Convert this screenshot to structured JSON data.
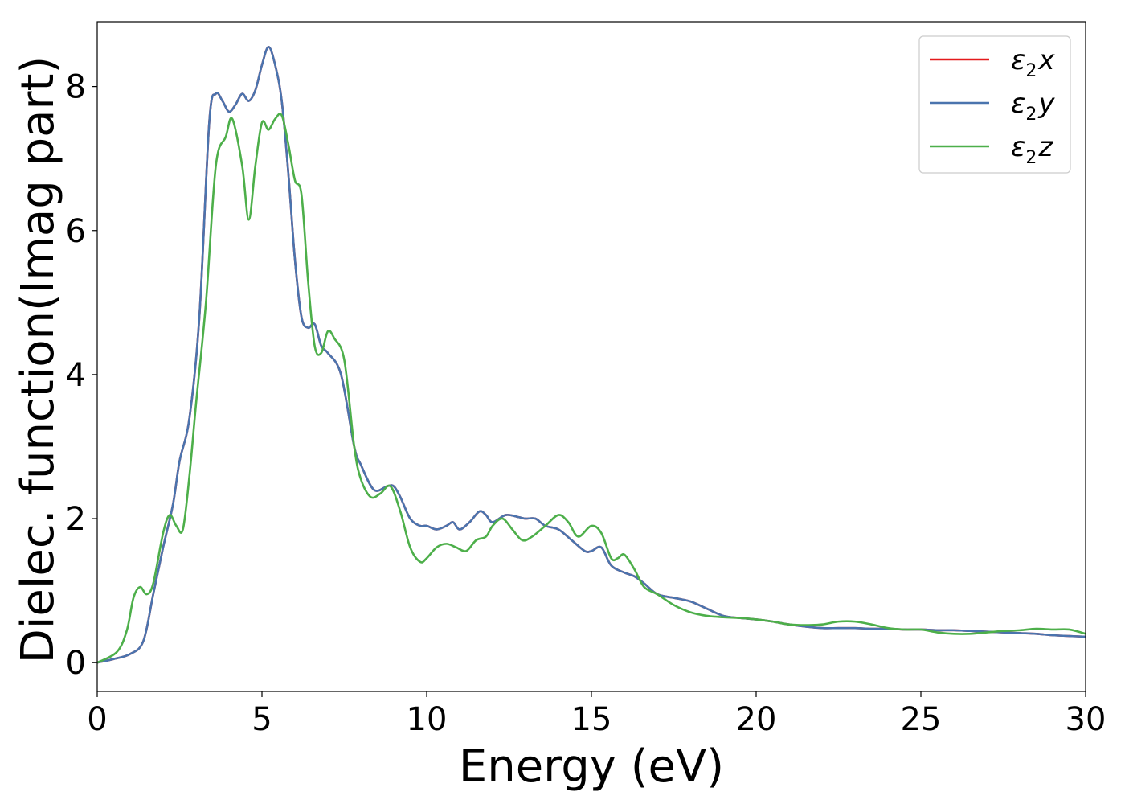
{
  "chart_data": {
    "type": "line",
    "xlabel": "Energy (eV)",
    "ylabel": "Dielec. function(Imag part)",
    "xlim": [
      0,
      30
    ],
    "ylim": [
      -0.4,
      8.9
    ],
    "xticks": [
      0,
      5,
      10,
      15,
      20,
      25,
      30
    ],
    "xtick_labels": [
      "0",
      "5",
      "10",
      "15",
      "20",
      "25",
      "30"
    ],
    "yticks": [
      0,
      2,
      4,
      6,
      8
    ],
    "ytick_labels": [
      "0",
      "2",
      "4",
      "6",
      "8"
    ],
    "grid": false,
    "legend_position": "top-right",
    "series": [
      {
        "name": "ε2x",
        "legend_main": "ε",
        "legend_sub": "2",
        "legend_axis": "x",
        "color": "#e41a1c",
        "x": [
          0,
          0.5,
          1.0,
          1.4,
          1.7,
          2.0,
          2.3,
          2.5,
          2.8,
          3.1,
          3.4,
          3.6,
          3.8,
          4.0,
          4.2,
          4.4,
          4.6,
          4.8,
          5.0,
          5.2,
          5.4,
          5.6,
          5.8,
          6.0,
          6.2,
          6.4,
          6.6,
          6.8,
          7.0,
          7.4,
          7.8,
          8.0,
          8.4,
          8.8,
          9.0,
          9.2,
          9.5,
          9.8,
          10.0,
          10.3,
          10.6,
          10.8,
          11.0,
          11.3,
          11.6,
          11.8,
          12.0,
          12.4,
          12.8,
          13.0,
          13.3,
          13.6,
          14.0,
          14.4,
          14.8,
          15.0,
          15.3,
          15.6,
          16.0,
          16.3,
          16.6,
          17.0,
          17.5,
          18.0,
          18.5,
          19.0,
          19.5,
          20.0,
          20.5,
          21.0,
          21.5,
          22.0,
          22.5,
          23.0,
          23.5,
          24.0,
          24.5,
          25.0,
          25.5,
          26.0,
          26.5,
          27.0,
          27.5,
          28.0,
          28.5,
          29.0,
          29.5,
          30.0
        ],
        "y": [
          0.0,
          0.05,
          0.12,
          0.3,
          0.95,
          1.6,
          2.2,
          2.8,
          3.4,
          4.8,
          7.5,
          7.9,
          7.8,
          7.65,
          7.75,
          7.9,
          7.8,
          7.95,
          8.3,
          8.55,
          8.3,
          7.8,
          6.8,
          5.6,
          4.8,
          4.65,
          4.7,
          4.4,
          4.3,
          4.0,
          3.0,
          2.75,
          2.4,
          2.45,
          2.45,
          2.3,
          2.0,
          1.9,
          1.9,
          1.85,
          1.9,
          1.95,
          1.85,
          1.95,
          2.1,
          2.05,
          1.95,
          2.05,
          2.02,
          2.0,
          2.0,
          1.9,
          1.85,
          1.7,
          1.55,
          1.55,
          1.6,
          1.35,
          1.25,
          1.2,
          1.1,
          0.95,
          0.9,
          0.85,
          0.75,
          0.65,
          0.62,
          0.6,
          0.57,
          0.53,
          0.5,
          0.48,
          0.48,
          0.48,
          0.47,
          0.47,
          0.46,
          0.46,
          0.45,
          0.45,
          0.44,
          0.43,
          0.42,
          0.41,
          0.4,
          0.38,
          0.37,
          0.36
        ]
      },
      {
        "name": "ε2y",
        "legend_main": "ε",
        "legend_sub": "2",
        "legend_axis": "y",
        "color": "#4a74ae",
        "x": [
          0,
          0.5,
          1.0,
          1.4,
          1.7,
          2.0,
          2.3,
          2.5,
          2.8,
          3.1,
          3.4,
          3.6,
          3.8,
          4.0,
          4.2,
          4.4,
          4.6,
          4.8,
          5.0,
          5.2,
          5.4,
          5.6,
          5.8,
          6.0,
          6.2,
          6.4,
          6.6,
          6.8,
          7.0,
          7.4,
          7.8,
          8.0,
          8.4,
          8.8,
          9.0,
          9.2,
          9.5,
          9.8,
          10.0,
          10.3,
          10.6,
          10.8,
          11.0,
          11.3,
          11.6,
          11.8,
          12.0,
          12.4,
          12.8,
          13.0,
          13.3,
          13.6,
          14.0,
          14.4,
          14.8,
          15.0,
          15.3,
          15.6,
          16.0,
          16.3,
          16.6,
          17.0,
          17.5,
          18.0,
          18.5,
          19.0,
          19.5,
          20.0,
          20.5,
          21.0,
          21.5,
          22.0,
          22.5,
          23.0,
          23.5,
          24.0,
          24.5,
          25.0,
          25.5,
          26.0,
          26.5,
          27.0,
          27.5,
          28.0,
          28.5,
          29.0,
          29.5,
          30.0
        ],
        "y": [
          0.0,
          0.05,
          0.12,
          0.3,
          0.95,
          1.6,
          2.2,
          2.8,
          3.4,
          4.8,
          7.5,
          7.9,
          7.8,
          7.65,
          7.75,
          7.9,
          7.8,
          7.95,
          8.3,
          8.55,
          8.3,
          7.8,
          6.8,
          5.6,
          4.8,
          4.65,
          4.7,
          4.4,
          4.3,
          4.0,
          3.0,
          2.75,
          2.4,
          2.45,
          2.45,
          2.3,
          2.0,
          1.9,
          1.9,
          1.85,
          1.9,
          1.95,
          1.85,
          1.95,
          2.1,
          2.05,
          1.95,
          2.05,
          2.02,
          2.0,
          2.0,
          1.9,
          1.85,
          1.7,
          1.55,
          1.55,
          1.6,
          1.35,
          1.25,
          1.2,
          1.1,
          0.95,
          0.9,
          0.85,
          0.75,
          0.65,
          0.62,
          0.6,
          0.57,
          0.53,
          0.5,
          0.48,
          0.48,
          0.48,
          0.47,
          0.47,
          0.46,
          0.46,
          0.45,
          0.45,
          0.44,
          0.43,
          0.42,
          0.41,
          0.4,
          0.38,
          0.37,
          0.36
        ]
      },
      {
        "name": "ε2z",
        "legend_main": "ε",
        "legend_sub": "2",
        "legend_axis": "z",
        "color": "#4daf4a",
        "x": [
          0,
          0.6,
          0.9,
          1.1,
          1.3,
          1.5,
          1.7,
          2.0,
          2.2,
          2.4,
          2.6,
          2.8,
          3.0,
          3.3,
          3.6,
          3.9,
          4.1,
          4.4,
          4.6,
          4.8,
          5.0,
          5.2,
          5.4,
          5.6,
          5.8,
          6.0,
          6.2,
          6.4,
          6.6,
          6.8,
          7.0,
          7.2,
          7.5,
          7.8,
          8.0,
          8.3,
          8.6,
          8.9,
          9.2,
          9.5,
          9.8,
          10.0,
          10.3,
          10.6,
          10.9,
          11.2,
          11.5,
          11.8,
          12.0,
          12.3,
          12.6,
          12.9,
          13.2,
          13.6,
          14.0,
          14.3,
          14.6,
          15.0,
          15.3,
          15.6,
          15.8,
          16.0,
          16.3,
          16.6,
          17.0,
          17.5,
          18.0,
          18.5,
          19.0,
          19.5,
          20.0,
          20.5,
          21.0,
          21.5,
          22.0,
          22.5,
          23.0,
          23.5,
          24.0,
          24.5,
          25.0,
          25.5,
          26.0,
          26.5,
          27.0,
          27.5,
          28.0,
          28.5,
          29.0,
          29.5,
          30.0
        ],
        "y": [
          0.0,
          0.15,
          0.45,
          0.9,
          1.05,
          0.95,
          1.1,
          1.8,
          2.05,
          1.9,
          1.85,
          2.6,
          3.6,
          5.0,
          6.9,
          7.3,
          7.55,
          6.9,
          6.15,
          6.9,
          7.5,
          7.4,
          7.55,
          7.6,
          7.2,
          6.7,
          6.5,
          5.3,
          4.4,
          4.3,
          4.6,
          4.5,
          4.2,
          3.0,
          2.55,
          2.3,
          2.35,
          2.45,
          2.1,
          1.6,
          1.4,
          1.45,
          1.6,
          1.65,
          1.6,
          1.55,
          1.7,
          1.75,
          1.9,
          2.0,
          1.85,
          1.7,
          1.75,
          1.9,
          2.05,
          1.95,
          1.75,
          1.9,
          1.8,
          1.45,
          1.45,
          1.5,
          1.3,
          1.05,
          0.95,
          0.8,
          0.7,
          0.65,
          0.63,
          0.62,
          0.6,
          0.57,
          0.53,
          0.52,
          0.53,
          0.57,
          0.57,
          0.53,
          0.48,
          0.46,
          0.46,
          0.42,
          0.4,
          0.4,
          0.42,
          0.44,
          0.45,
          0.47,
          0.46,
          0.46,
          0.4
        ]
      }
    ]
  }
}
